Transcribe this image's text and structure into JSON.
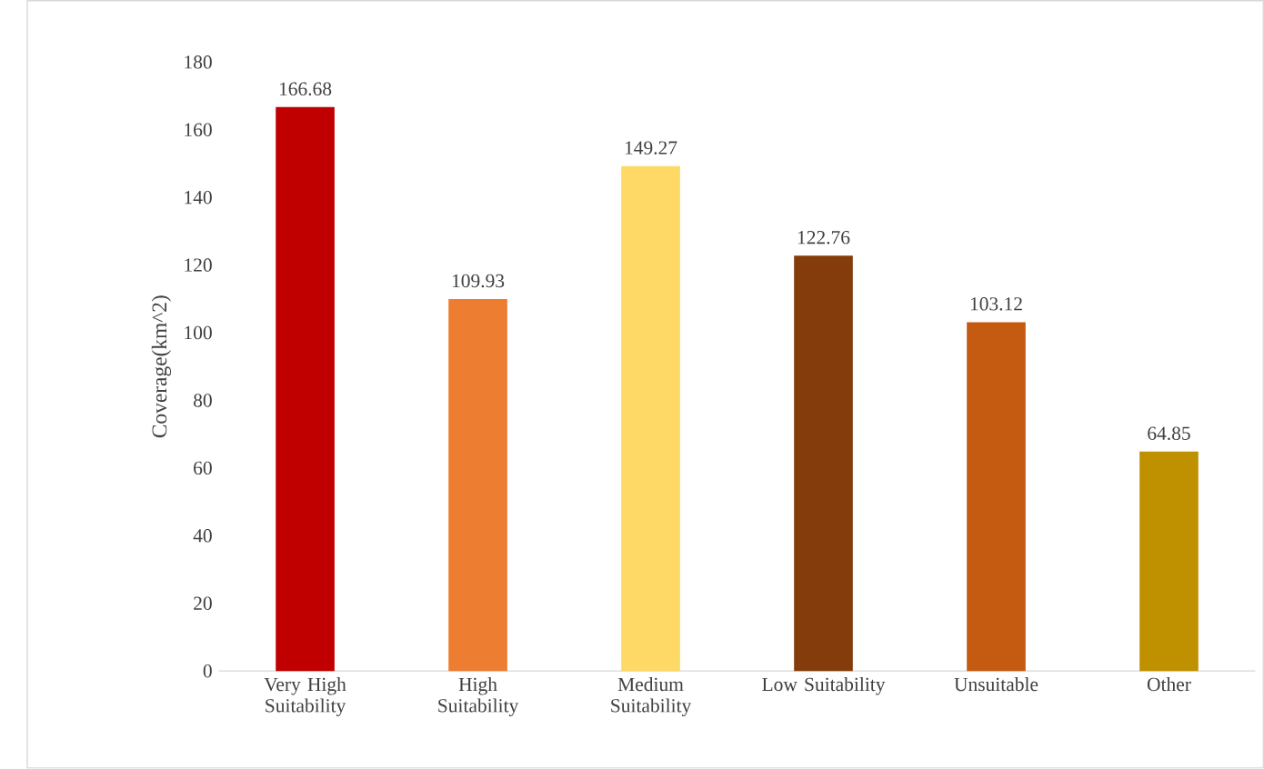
{
  "chart_data": {
    "type": "bar",
    "ylabel": "Coverage(km^2)",
    "categories": [
      "Very High Suitability",
      "High Suitability",
      "Medium Suitability",
      "Low Suitability",
      "Unsuitable",
      "Other"
    ],
    "values": [
      166.68,
      109.93,
      149.27,
      122.76,
      103.12,
      64.85
    ],
    "colors": [
      "#c00000",
      "#ed7d31",
      "#ffd966",
      "#843c0c",
      "#c55a11",
      "#bf9000"
    ],
    "ylim": [
      0,
      180
    ],
    "yticks": [
      0,
      20,
      40,
      60,
      80,
      100,
      120,
      140,
      160,
      180
    ],
    "data_labels": true,
    "grid": false
  }
}
